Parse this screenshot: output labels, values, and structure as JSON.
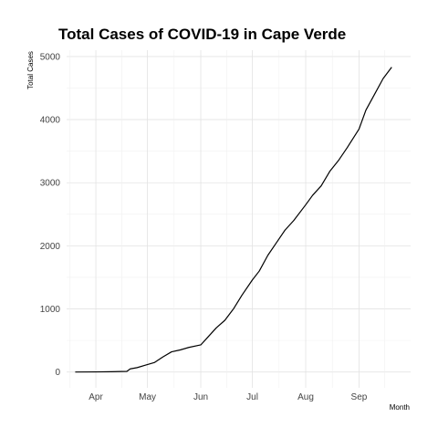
{
  "chart_data": {
    "type": "line",
    "title": "Total Cases of COVID-19 in Cape Verde",
    "xlabel": "Month",
    "ylabel": "Total Cases",
    "x_axis_type": "date",
    "xlim": [
      "2020-03-15",
      "2020-10-01"
    ],
    "ylim": [
      -250,
      5100
    ],
    "x_ticks": [
      {
        "date": "2020-04-01",
        "label": "Apr"
      },
      {
        "date": "2020-05-01",
        "label": "May"
      },
      {
        "date": "2020-06-01",
        "label": "Jun"
      },
      {
        "date": "2020-07-01",
        "label": "Jul"
      },
      {
        "date": "2020-08-01",
        "label": "Aug"
      },
      {
        "date": "2020-09-01",
        "label": "Sep"
      }
    ],
    "y_ticks": [
      0,
      1000,
      2000,
      3000,
      4000,
      5000
    ],
    "grid": true,
    "legend": "none",
    "series": [
      {
        "color": "#000000",
        "x": [
          "2020-03-20",
          "2020-04-01",
          "2020-04-10",
          "2020-04-19",
          "2020-04-21",
          "2020-04-25",
          "2020-04-30",
          "2020-05-05",
          "2020-05-10",
          "2020-05-15",
          "2020-05-20",
          "2020-05-25",
          "2020-06-01",
          "2020-06-05",
          "2020-06-10",
          "2020-06-15",
          "2020-06-20",
          "2020-06-25",
          "2020-07-01",
          "2020-07-05",
          "2020-07-10",
          "2020-07-15",
          "2020-07-20",
          "2020-07-25",
          "2020-08-01",
          "2020-08-05",
          "2020-08-10",
          "2020-08-15",
          "2020-08-20",
          "2020-08-25",
          "2020-09-01",
          "2020-09-05",
          "2020-09-10",
          "2020-09-15",
          "2020-09-20"
        ],
        "y": [
          0,
          2,
          5,
          10,
          50,
          70,
          110,
          150,
          240,
          320,
          350,
          390,
          430,
          550,
          700,
          820,
          1000,
          1220,
          1460,
          1600,
          1850,
          2050,
          2250,
          2400,
          2650,
          2800,
          2950,
          3180,
          3350,
          3550,
          3850,
          4150,
          4400,
          4650,
          4830
        ]
      }
    ]
  }
}
